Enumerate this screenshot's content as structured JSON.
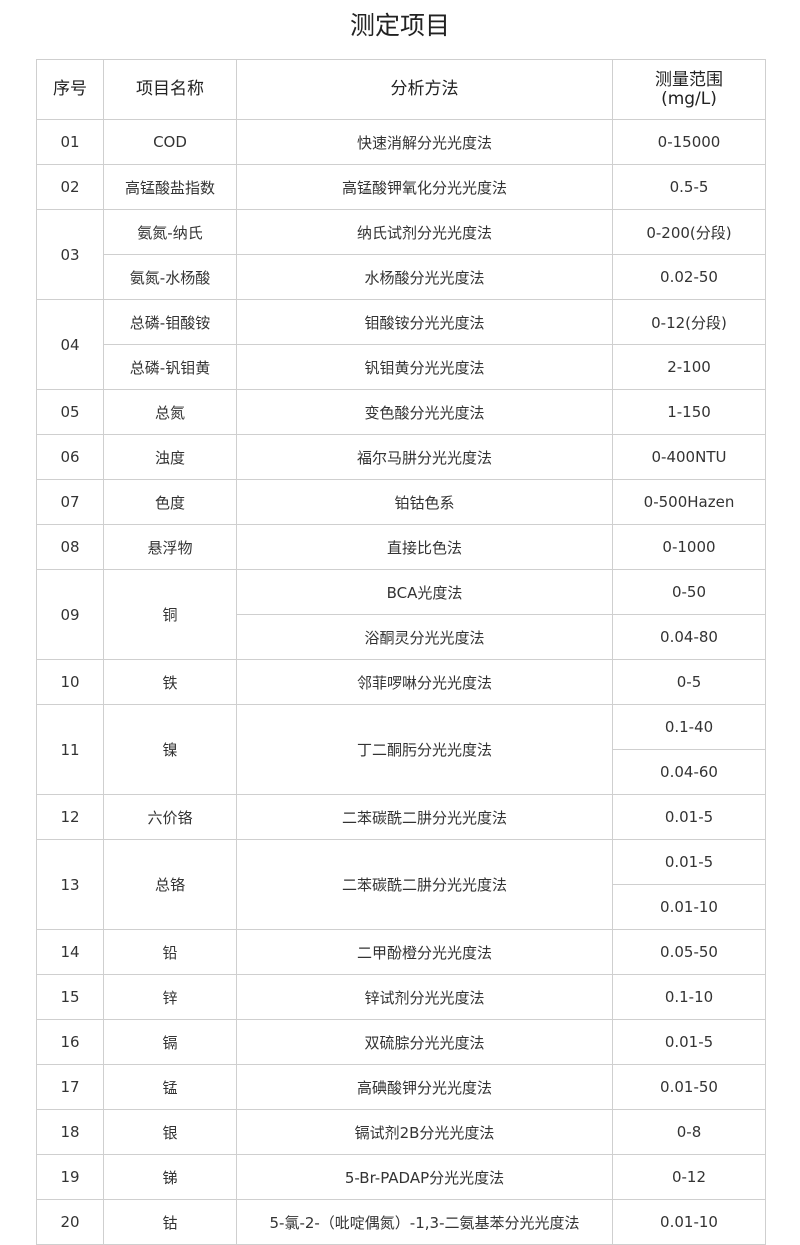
{
  "title": "测定项目",
  "headers": [
    "序号",
    "项目名称",
    "分析方法",
    "测量范围",
    "(mg/L)"
  ],
  "rows": [
    {
      "no": "01",
      "names": [
        "COD"
      ],
      "methods": [
        "快速消解分光光度法"
      ],
      "ranges": [
        "0-15000"
      ]
    },
    {
      "no": "02",
      "names": [
        "高锰酸盐指数"
      ],
      "methods": [
        "高锰酸钾氧化分光光度法"
      ],
      "ranges": [
        "0.5-5"
      ]
    },
    {
      "no": "03",
      "names": [
        "氨氮-纳氏",
        "氨氮-水杨酸"
      ],
      "methods": [
        "纳氏试剂分光光度法",
        "水杨酸分光光度法"
      ],
      "ranges": [
        "0-200(分段)",
        "0.02-50"
      ]
    },
    {
      "no": "04",
      "names": [
        "总磷-钼酸铵",
        "总磷-钒钼黄"
      ],
      "methods": [
        "钼酸铵分光光度法",
        "钒钼黄分光光度法"
      ],
      "ranges": [
        "0-12(分段)",
        "2-100"
      ]
    },
    {
      "no": "05",
      "names": [
        "总氮"
      ],
      "methods": [
        "变色酸分光光度法"
      ],
      "ranges": [
        "1-150"
      ]
    },
    {
      "no": "06",
      "names": [
        "浊度"
      ],
      "methods": [
        "福尔马肼分光光度法"
      ],
      "ranges": [
        "0-400NTU"
      ]
    },
    {
      "no": "07",
      "names": [
        "色度"
      ],
      "methods": [
        "铂钴色系"
      ],
      "ranges": [
        "0-500Hazen"
      ]
    },
    {
      "no": "08",
      "names": [
        "悬浮物"
      ],
      "methods": [
        "直接比色法"
      ],
      "ranges": [
        "0-1000"
      ]
    },
    {
      "no": "09",
      "names": [
        "铜"
      ],
      "methods": [
        "BCA光度法",
        "浴酮灵分光光度法"
      ],
      "ranges": [
        "0-50",
        "0.04-80"
      ]
    },
    {
      "no": "10",
      "names": [
        "铁"
      ],
      "methods": [
        "邻菲啰啉分光光度法"
      ],
      "ranges": [
        "0-5"
      ]
    },
    {
      "no": "11",
      "names": [
        "镍"
      ],
      "methods": [
        "丁二酮肟分光光度法"
      ],
      "ranges": [
        "0.1-40",
        "0.04-60"
      ]
    },
    {
      "no": "12",
      "names": [
        "六价铬"
      ],
      "methods": [
        "二苯碳酰二肼分光光度法"
      ],
      "ranges": [
        "0.01-5"
      ]
    },
    {
      "no": "13",
      "names": [
        "总铬"
      ],
      "methods": [
        "二苯碳酰二肼分光光度法"
      ],
      "ranges": [
        "0.01-5",
        "0.01-10"
      ]
    },
    {
      "no": "14",
      "names": [
        "铅"
      ],
      "methods": [
        "二甲酚橙分光光度法"
      ],
      "ranges": [
        "0.05-50"
      ]
    },
    {
      "no": "15",
      "names": [
        "锌"
      ],
      "methods": [
        "锌试剂分光光度法"
      ],
      "ranges": [
        "0.1-10"
      ]
    },
    {
      "no": "16",
      "names": [
        "镉"
      ],
      "methods": [
        "双硫腙分光光度法"
      ],
      "ranges": [
        "0.01-5"
      ]
    },
    {
      "no": "17",
      "names": [
        "锰"
      ],
      "methods": [
        "高碘酸钾分光光度法"
      ],
      "ranges": [
        "0.01-50"
      ]
    },
    {
      "no": "18",
      "names": [
        "银"
      ],
      "methods": [
        "镉试剂2B分光光度法"
      ],
      "ranges": [
        "0-8"
      ]
    },
    {
      "no": "19",
      "names": [
        "锑"
      ],
      "methods": [
        "5-Br-PADAP分光光度法"
      ],
      "ranges": [
        "0-12"
      ]
    },
    {
      "no": "20",
      "names": [
        "钴"
      ],
      "methods": [
        "5-氯-2-（吡啶偶氮）-1,3-二氨基苯分光光度法"
      ],
      "ranges": [
        "0.01-10"
      ]
    }
  ]
}
